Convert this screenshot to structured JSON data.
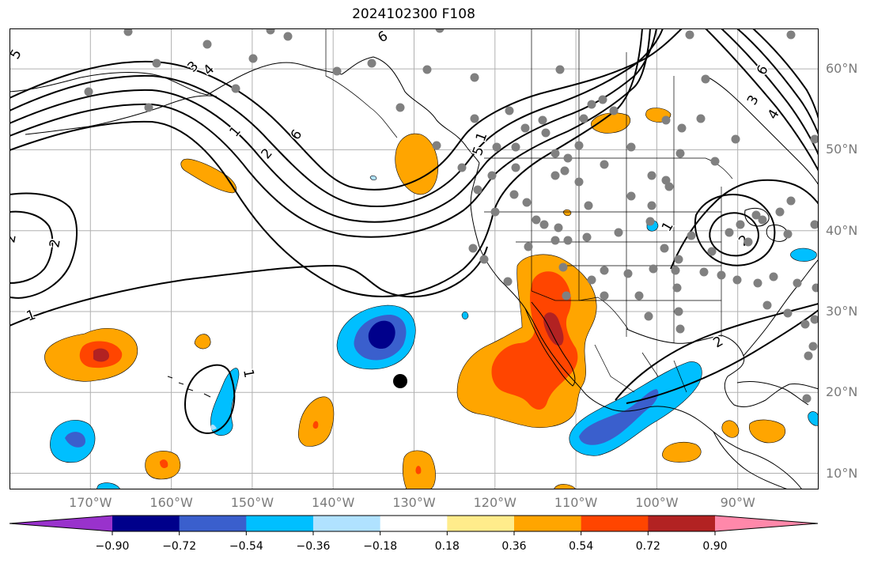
{
  "title": "2024102300 F108",
  "lat_labels": [
    {
      "deg": 60,
      "text": "60°N"
    },
    {
      "deg": 50,
      "text": "50°N"
    },
    {
      "deg": 40,
      "text": "40°N"
    },
    {
      "deg": 30,
      "text": "30°N"
    },
    {
      "deg": 20,
      "text": "20°N"
    },
    {
      "deg": 10,
      "text": "10°N"
    }
  ],
  "lon_labels": [
    {
      "deg": -170,
      "text": "170°W"
    },
    {
      "deg": -160,
      "text": "160°W"
    },
    {
      "deg": -150,
      "text": "150°W"
    },
    {
      "deg": -140,
      "text": "140°W"
    },
    {
      "deg": -130,
      "text": "130°W"
    },
    {
      "deg": -120,
      "text": "120°W"
    },
    {
      "deg": -110,
      "text": "110°W"
    },
    {
      "deg": -100,
      "text": "100°W"
    },
    {
      "deg": -90,
      "text": "90°W"
    }
  ],
  "map_extent": {
    "lon_min": -180,
    "lon_max": -80,
    "lat_min": 8,
    "lat_max": 65
  },
  "colorbar": {
    "ticks": [
      "−0.90",
      "−0.72",
      "−0.54",
      "−0.36",
      "−0.18",
      "0.18",
      "0.36",
      "0.54",
      "0.72",
      "0.90"
    ],
    "colors": [
      "#9932cc",
      "#00008b",
      "#3a5fcd",
      "#00bfff",
      "#b0e2ff",
      "#ffffff",
      "#ffec8b",
      "#ffa500",
      "#ff4500",
      "#b22222",
      "#ff88aa"
    ]
  },
  "contour_labels": [
    "5",
    "3",
    "4",
    "1",
    "2",
    "6",
    "2",
    "2",
    "1",
    "1",
    "6",
    "5",
    "2",
    "6",
    "3",
    "4",
    "1",
    "2",
    "1"
  ],
  "colors": {
    "land": "#ffffff",
    "ocean": "#ffffff",
    "grid": "#b0b0b0",
    "coast": "#000000",
    "contour": "#000000",
    "station": "#808080",
    "marker": "#000000"
  }
}
